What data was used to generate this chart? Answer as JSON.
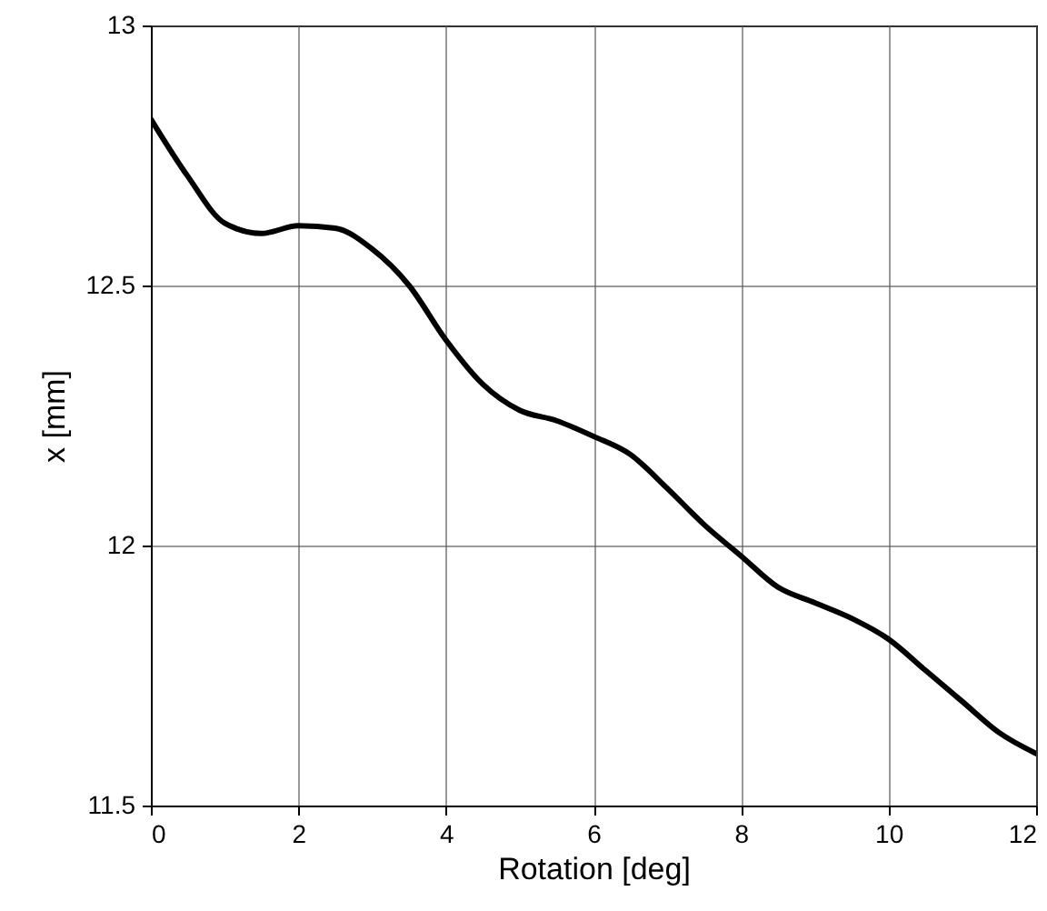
{
  "chart_data": {
    "type": "line",
    "xlabel": "Rotation [deg]",
    "ylabel": "x [mm]",
    "x": [
      0,
      0.5,
      1,
      1.5,
      2,
      2.5,
      3,
      3.5,
      4,
      4.5,
      5,
      5.5,
      6,
      6.5,
      7,
      7.5,
      8,
      8.5,
      9,
      9.5,
      10,
      10.5,
      11,
      11.5,
      12
    ],
    "series": [
      {
        "color": "#000000",
        "values": [
          12.82,
          12.71,
          12.62,
          12.6,
          12.615,
          12.61,
          12.57,
          12.5,
          12.395,
          12.31,
          12.26,
          12.24,
          12.21,
          12.175,
          12.11,
          12.04,
          11.98,
          11.92,
          11.89,
          11.86,
          11.82,
          11.76,
          11.7,
          11.64,
          11.6
        ]
      }
    ],
    "xlim": [
      0,
      12
    ],
    "ylim": [
      11.5,
      13
    ],
    "xticks": [
      0,
      2,
      4,
      6,
      8,
      10,
      12
    ],
    "yticks": [
      11.5,
      12,
      12.5,
      13
    ],
    "grid": true
  }
}
